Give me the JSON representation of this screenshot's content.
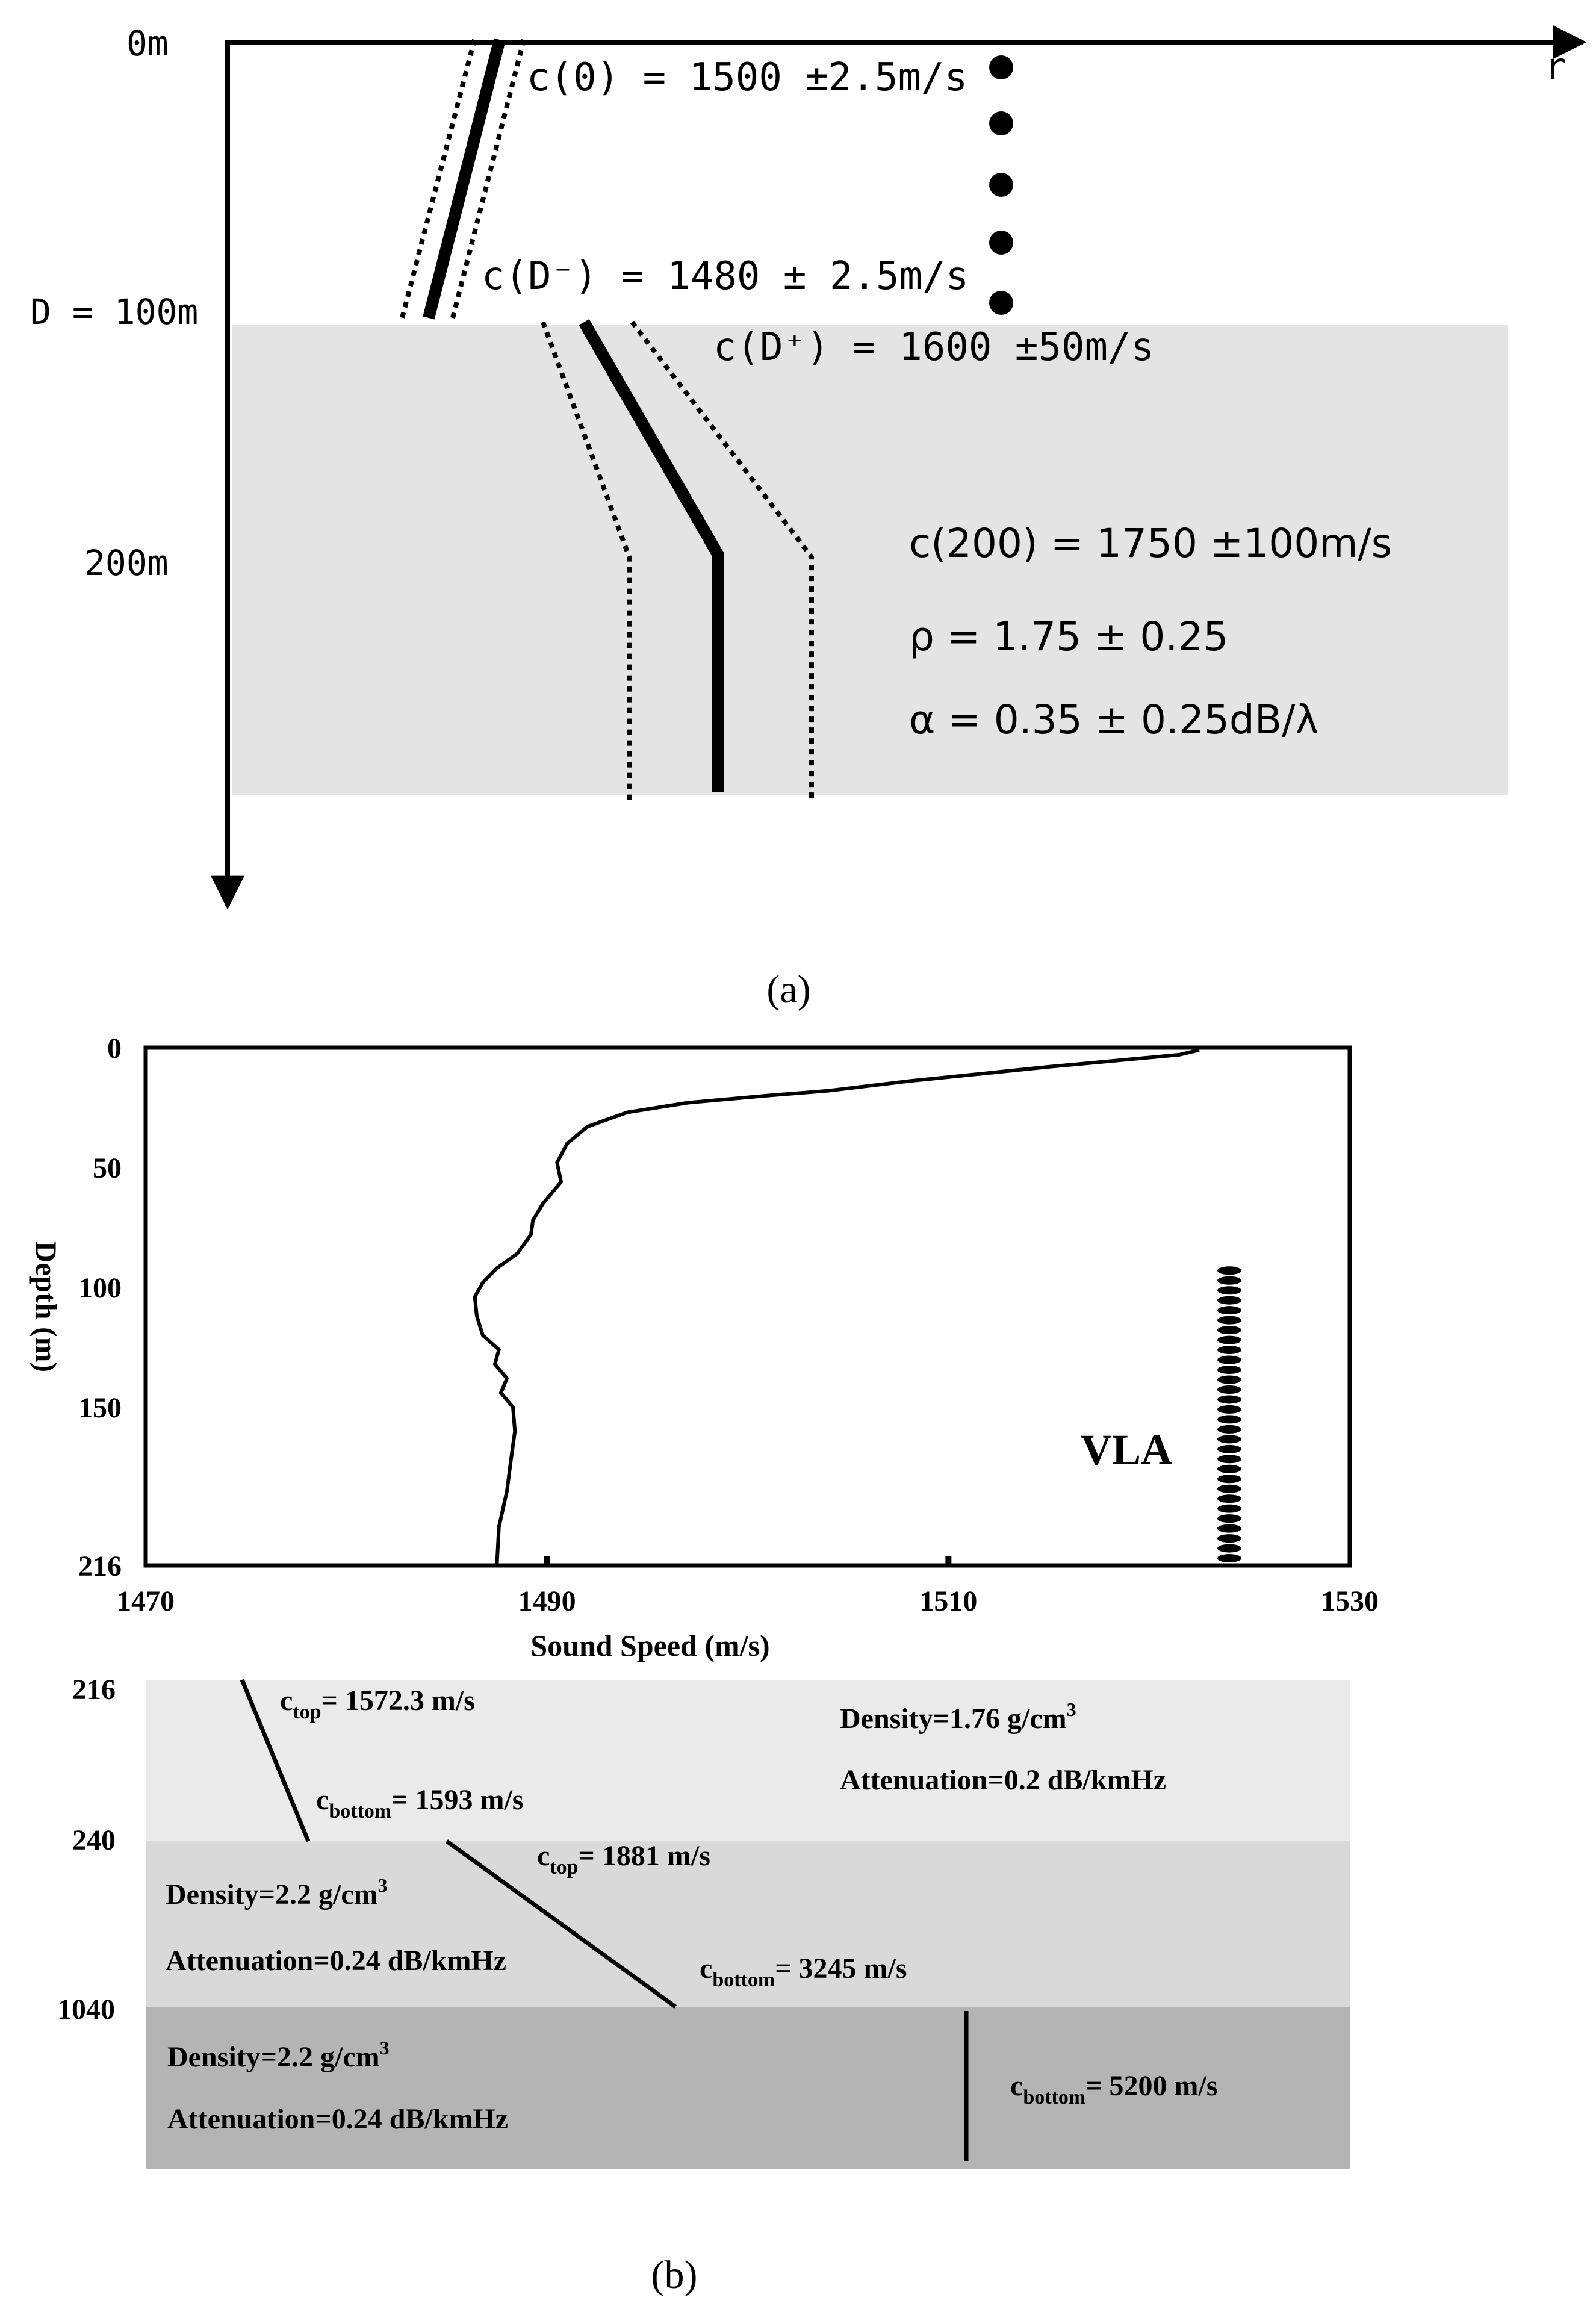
{
  "panel_a": {
    "axis_r_label": "r",
    "depth_0": "0m",
    "depth_D": "D = 100m",
    "depth_200": "200m",
    "c0_label": "c(0) = 1500 ±2.5m/s",
    "cDminus_label": "c(D⁻) = 1480 ± 2.5m/s",
    "cDplus_label": "c(D⁺) = 1600 ±50m/s",
    "c200_label": "c(200) = 1750 ±100m/s",
    "rho_label": "ρ = 1.75 ± 0.25",
    "alpha_label": "α = 0.35 ± 0.25dB/λ",
    "caption": "(a)"
  },
  "panel_b": {
    "caption": "(b)",
    "chart_data": {
      "type": "line",
      "xlabel": "Sound Speed (m/s)",
      "ylabel": "Depth (m)",
      "xlim": [
        1470,
        1530
      ],
      "ylim": [
        216,
        0
      ],
      "xticks": [
        "1470",
        "1490",
        "1510",
        "1530"
      ],
      "yticks": [
        "0",
        "50",
        "100",
        "150",
        "216"
      ],
      "series": [
        {
          "x": [
            1522.5,
            1521.5,
            1515,
            1508,
            1504,
            1501,
            1497,
            1494,
            1492,
            1491,
            1490.5,
            1490.7,
            1489.8,
            1489.3,
            1489.2,
            1488.5,
            1487.5,
            1486.8,
            1486.4,
            1486.5,
            1486.8,
            1487.6,
            1487.4,
            1488.0,
            1487.7,
            1488.3,
            1488.4,
            1488.2,
            1488.0,
            1487.6,
            1487.5
          ],
          "y": [
            1,
            3,
            8,
            14,
            18,
            20,
            23,
            27,
            33,
            40,
            48,
            56,
            65,
            72,
            78,
            86,
            92,
            98,
            104,
            112,
            120,
            126,
            132,
            138,
            144,
            150,
            160,
            172,
            185,
            200,
            216
          ]
        }
      ],
      "annotation": "VLA",
      "vla": {
        "x": 1524,
        "depth_top": 93,
        "depth_bottom": 213,
        "elements": 30
      }
    },
    "depth_216": "216",
    "depth_240": "240",
    "depth_1040": "1040",
    "layer1": {
      "ctop_sub": "top",
      "ctop_value": "= 1572.3 m/s",
      "cbottom_sub": "bottom",
      "cbottom_value": "= 1593 m/s",
      "density": "Density=1.76 g/cm",
      "density_sup": "3",
      "attenuation": "Attenuation=0.2  dB/kmHz",
      "color": "#eaeaea"
    },
    "layer2": {
      "ctop_sub": "top",
      "ctop_value": "= 1881 m/s",
      "cbottom_sub": "bottom",
      "cbottom_value": "= 3245 m/s",
      "density": "Density=2.2 g/cm",
      "density_sup": "3",
      "attenuation": "Attenuation=0.24 dB/kmHz",
      "color": "#d9d9d9"
    },
    "layer3": {
      "cbottom_sub": "bottom",
      "cbottom_value": "= 5200 m/s",
      "density": "Density=2.2 g/cm",
      "density_sup": "3",
      "attenuation": "Attenuation=0.24 dB/kmHz",
      "color": "#b4b4b4"
    }
  }
}
